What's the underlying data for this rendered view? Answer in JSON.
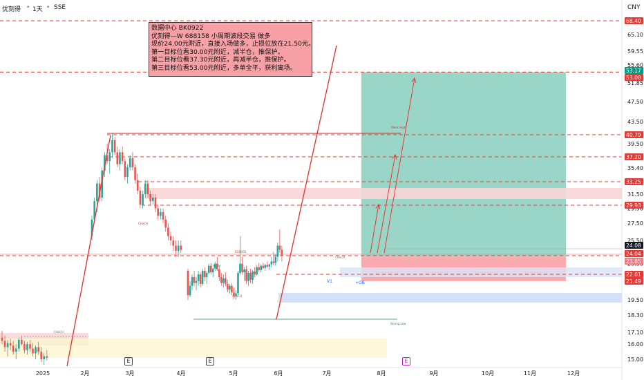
{
  "header": {
    "symbol": "优刻得",
    "interval": "1天",
    "exchange": "SSE",
    "currency": "CNY"
  },
  "note": {
    "lines": [
      "数据中心 BK0922",
      "优刻得—W 688158 小周期波段交易 做多",
      "现价24.00元附近，直接入场做多，止损位放在21.50元。",
      "第一目标位看30.00元附近，减半仓，推保护。",
      "第二目标位看37.30元附近，再减半仓，推保护。",
      "第三目标位看53.00元附近，多单全平，获利离场。"
    ]
  },
  "chart_labels": {
    "choch_1": "CHoCH",
    "choch_2": "CHoCH",
    "choch_3": "CHoCH",
    "choch_4": "CHoCH",
    "choch_5": "CHoCH",
    "eql": "EQL",
    "bos": "BOS",
    "weak_high": "Weak High",
    "strong_low": "Strong Low",
    "ob": "+OB",
    "v1": "V1"
  },
  "earnings_markers": [
    "E",
    "E",
    "E"
  ],
  "colors": {
    "up": "#26a69a",
    "down": "#ef5350",
    "target_zone": "#8fd1c1",
    "stop_zone": "#f7a1a6",
    "dashed_level": "#e53935",
    "trend_line": "#e53935",
    "box_border": "#3a3a3a"
  },
  "chart_data": {
    "type": "candlestick",
    "x_ticks": [
      "2025",
      "2月",
      "3月",
      "4月",
      "5月",
      "6月",
      "7月",
      "8月",
      "9月",
      "10月",
      "11月",
      "12月"
    ],
    "y_ticks": [
      68.4,
      65.1,
      59.55,
      55.6,
      51.85,
      47.5,
      43.5,
      39.5,
      35.4,
      33.25,
      31.5,
      29.5,
      27.5,
      25.5,
      23.5,
      21.5,
      19.5,
      18.3,
      17.1,
      16.0,
      15.0
    ],
    "ylim": [
      14.5,
      70
    ],
    "price_tags": [
      {
        "value": "68.40",
        "color": "#e53935"
      },
      {
        "value": "53.17",
        "color": "#089981"
      },
      {
        "value": "53.00",
        "color": "#e53935"
      },
      {
        "value": "40.79",
        "color": "#e53935"
      },
      {
        "value": "37.20",
        "color": "#e53935"
      },
      {
        "value": "33.25",
        "color": "#e53935"
      },
      {
        "value": "29.93",
        "color": "#e53935"
      },
      {
        "value": "24.08",
        "color": "#131722"
      },
      {
        "value": "24.04",
        "color": "#e53935"
      },
      {
        "value": "23.85",
        "color": "#f27a80"
      },
      {
        "value": "22.01",
        "color": "#e53935"
      },
      {
        "value": "21.49",
        "color": "#e53935"
      }
    ],
    "dashed_levels": [
      68.4,
      53.0,
      40.79,
      37.2,
      33.25,
      29.93,
      24.04,
      22.01
    ],
    "position": {
      "entry": 24.0,
      "stop": 21.5,
      "target": 53.0,
      "targets": [
        30.0,
        37.3,
        53.0
      ]
    },
    "candles": [
      [
        16.6,
        17.2,
        16.0,
        16.3
      ],
      [
        16.3,
        16.8,
        15.5,
        15.8
      ],
      [
        15.8,
        16.4,
        15.2,
        16.1
      ],
      [
        16.1,
        16.5,
        15.6,
        15.9
      ],
      [
        15.9,
        16.3,
        15.3,
        15.5
      ],
      [
        15.5,
        16.0,
        15.0,
        15.7
      ],
      [
        15.7,
        16.6,
        15.5,
        16.4
      ],
      [
        16.4,
        16.8,
        15.9,
        16.0
      ],
      [
        16.0,
        16.3,
        15.4,
        15.6
      ],
      [
        15.6,
        16.2,
        15.3,
        16.0
      ],
      [
        16.0,
        16.4,
        15.5,
        15.7
      ],
      [
        15.7,
        16.1,
        15.2,
        15.4
      ],
      [
        15.4,
        15.9,
        15.0,
        15.8
      ],
      [
        15.8,
        16.2,
        15.3,
        15.5
      ],
      [
        15.5,
        15.8,
        14.8,
        15.0
      ],
      [
        15.0,
        15.4,
        14.6,
        15.2
      ],
      [
        15.2,
        15.6,
        14.9,
        15.1
      ],
      [
        26.0,
        28.5,
        25.5,
        28.0
      ],
      [
        28.0,
        31.0,
        27.5,
        30.5
      ],
      [
        30.5,
        33.5,
        29.0,
        33.0
      ],
      [
        33.0,
        34.0,
        30.5,
        31.0
      ],
      [
        31.0,
        35.5,
        30.5,
        35.0
      ],
      [
        35.0,
        38.0,
        34.0,
        37.5
      ],
      [
        37.5,
        39.5,
        36.0,
        36.5
      ],
      [
        36.5,
        38.5,
        34.5,
        38.0
      ],
      [
        38.0,
        41.0,
        37.0,
        40.0
      ],
      [
        40.0,
        40.5,
        37.5,
        38.0
      ],
      [
        38.0,
        39.0,
        35.5,
        36.0
      ],
      [
        36.0,
        38.5,
        35.0,
        38.0
      ],
      [
        38.0,
        39.0,
        36.0,
        36.5
      ],
      [
        36.5,
        37.0,
        33.5,
        34.0
      ],
      [
        34.0,
        36.0,
        33.0,
        35.5
      ],
      [
        35.5,
        37.5,
        35.0,
        37.0
      ],
      [
        37.0,
        38.0,
        35.0,
        35.5
      ],
      [
        35.5,
        36.0,
        33.0,
        33.5
      ],
      [
        33.5,
        34.5,
        31.5,
        32.0
      ],
      [
        32.0,
        32.5,
        29.5,
        30.0
      ],
      [
        30.0,
        32.0,
        29.5,
        31.5
      ],
      [
        31.5,
        33.5,
        31.0,
        33.0
      ],
      [
        33.0,
        33.5,
        31.0,
        31.5
      ],
      [
        31.5,
        32.0,
        30.0,
        30.5
      ],
      [
        30.5,
        31.5,
        30.0,
        31.0
      ],
      [
        31.0,
        31.5,
        29.0,
        29.5
      ],
      [
        29.5,
        30.0,
        28.0,
        28.5
      ],
      [
        28.5,
        29.5,
        28.0,
        29.0
      ],
      [
        29.0,
        29.5,
        27.5,
        28.0
      ],
      [
        28.0,
        28.5,
        26.5,
        27.0
      ],
      [
        27.0,
        27.5,
        25.5,
        26.0
      ],
      [
        26.0,
        26.5,
        25.0,
        25.5
      ],
      [
        25.5,
        26.0,
        24.5,
        25.0
      ],
      [
        25.0,
        25.5,
        24.0,
        24.5
      ],
      [
        24.5,
        25.5,
        24.0,
        25.0
      ],
      [
        25.0,
        25.5,
        24.3,
        24.6
      ],
      [
        22.5,
        22.8,
        19.5,
        20.0
      ],
      [
        20.0,
        21.5,
        19.8,
        21.0
      ],
      [
        21.0,
        22.0,
        20.5,
        21.8
      ],
      [
        21.8,
        22.5,
        21.0,
        21.3
      ],
      [
        21.3,
        21.8,
        20.5,
        21.5
      ],
      [
        21.5,
        22.5,
        21.0,
        22.0
      ],
      [
        22.0,
        22.3,
        20.8,
        21.2
      ],
      [
        21.2,
        22.8,
        21.0,
        22.5
      ],
      [
        22.5,
        23.0,
        21.5,
        21.8
      ],
      [
        21.8,
        22.5,
        21.2,
        22.2
      ],
      [
        22.2,
        23.5,
        22.0,
        23.2
      ],
      [
        23.2,
        23.6,
        22.0,
        22.3
      ],
      [
        22.3,
        23.0,
        21.8,
        22.8
      ],
      [
        22.8,
        23.8,
        22.5,
        23.5
      ],
      [
        23.5,
        24.0,
        22.5,
        22.7
      ],
      [
        22.7,
        23.2,
        21.5,
        21.8
      ],
      [
        21.8,
        22.2,
        21.0,
        21.3
      ],
      [
        21.3,
        22.0,
        20.8,
        21.7
      ],
      [
        21.7,
        22.3,
        21.0,
        21.2
      ],
      [
        21.2,
        21.6,
        20.3,
        20.6
      ],
      [
        20.6,
        21.2,
        20.2,
        21.0
      ],
      [
        21.0,
        21.3,
        20.0,
        20.3
      ],
      [
        20.3,
        20.8,
        19.6,
        19.9
      ],
      [
        19.9,
        20.5,
        19.5,
        20.2
      ],
      [
        20.2,
        22.5,
        20.0,
        22.2
      ],
      [
        22.2,
        26.0,
        22.0,
        23.5
      ],
      [
        23.5,
        24.0,
        22.0,
        22.3
      ],
      [
        22.3,
        23.0,
        21.5,
        22.7
      ],
      [
        22.7,
        23.2,
        21.2,
        21.5
      ],
      [
        21.5,
        22.5,
        21.0,
        22.2
      ],
      [
        22.2,
        22.8,
        21.3,
        21.6
      ],
      [
        21.6,
        22.6,
        21.2,
        22.4
      ],
      [
        22.4,
        23.0,
        21.8,
        22.0
      ],
      [
        22.0,
        23.3,
        21.9,
        23.0
      ],
      [
        23.0,
        23.6,
        22.4,
        22.6
      ],
      [
        22.6,
        23.4,
        22.3,
        23.2
      ],
      [
        23.2,
        23.6,
        22.7,
        22.9
      ],
      [
        22.9,
        23.5,
        22.5,
        23.3
      ],
      [
        23.3,
        23.8,
        22.9,
        23.1
      ],
      [
        23.1,
        23.5,
        22.6,
        23.4
      ],
      [
        23.4,
        24.0,
        23.0,
        23.8
      ],
      [
        23.8,
        24.4,
        23.3,
        23.6
      ],
      [
        23.6,
        24.2,
        23.2,
        24.0
      ],
      [
        24.0,
        25.3,
        23.8,
        25.0
      ],
      [
        25.0,
        26.8,
        24.3,
        24.6
      ],
      [
        24.6,
        25.0,
        23.8,
        24.08
      ]
    ]
  }
}
